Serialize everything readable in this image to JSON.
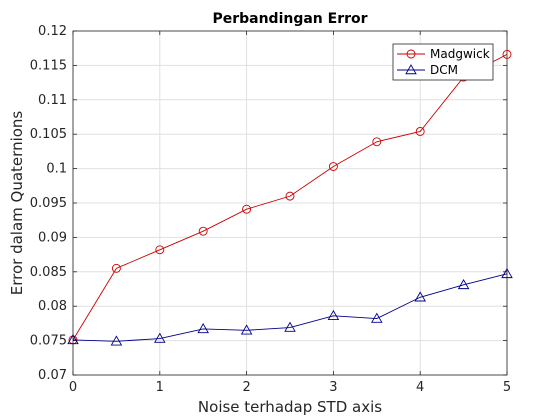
{
  "chart_data": {
    "type": "line",
    "title": "Perbandingan Error",
    "xlabel": "Noise terhadap STD axis",
    "ylabel": "Error dalam Quaternions",
    "xlim": [
      0,
      5
    ],
    "ylim": [
      0.07,
      0.12
    ],
    "xticks": [
      0,
      1,
      2,
      3,
      4,
      5
    ],
    "xtick_labels": [
      "0",
      "1",
      "2",
      "3",
      "4",
      "5"
    ],
    "yticks": [
      0.07,
      0.075,
      0.08,
      0.085,
      0.09,
      0.095,
      0.1,
      0.105,
      0.11,
      0.115,
      0.12
    ],
    "ytick_labels": [
      "0.07",
      "0.075",
      "0.08",
      "0.085",
      "0.09",
      "0.095",
      "0.1",
      "0.105",
      "0.11",
      "0.115",
      "0.12"
    ],
    "grid": true,
    "legend_position": "top-right",
    "x": [
      0,
      0.5,
      1,
      1.5,
      2,
      2.5,
      3,
      3.5,
      4,
      4.5,
      5
    ],
    "series": [
      {
        "name": "Madgwick",
        "color": "#cc0000",
        "marker": "circle",
        "values": [
          0.0751,
          0.0855,
          0.0882,
          0.0909,
          0.0941,
          0.096,
          0.1003,
          0.1039,
          0.1054,
          0.1133,
          0.1166
        ]
      },
      {
        "name": "DCM",
        "color": "#00008b",
        "marker": "triangle",
        "values": [
          0.0751,
          0.0749,
          0.0753,
          0.0767,
          0.0765,
          0.0769,
          0.0786,
          0.0782,
          0.0813,
          0.0831,
          0.0847
        ]
      }
    ]
  }
}
